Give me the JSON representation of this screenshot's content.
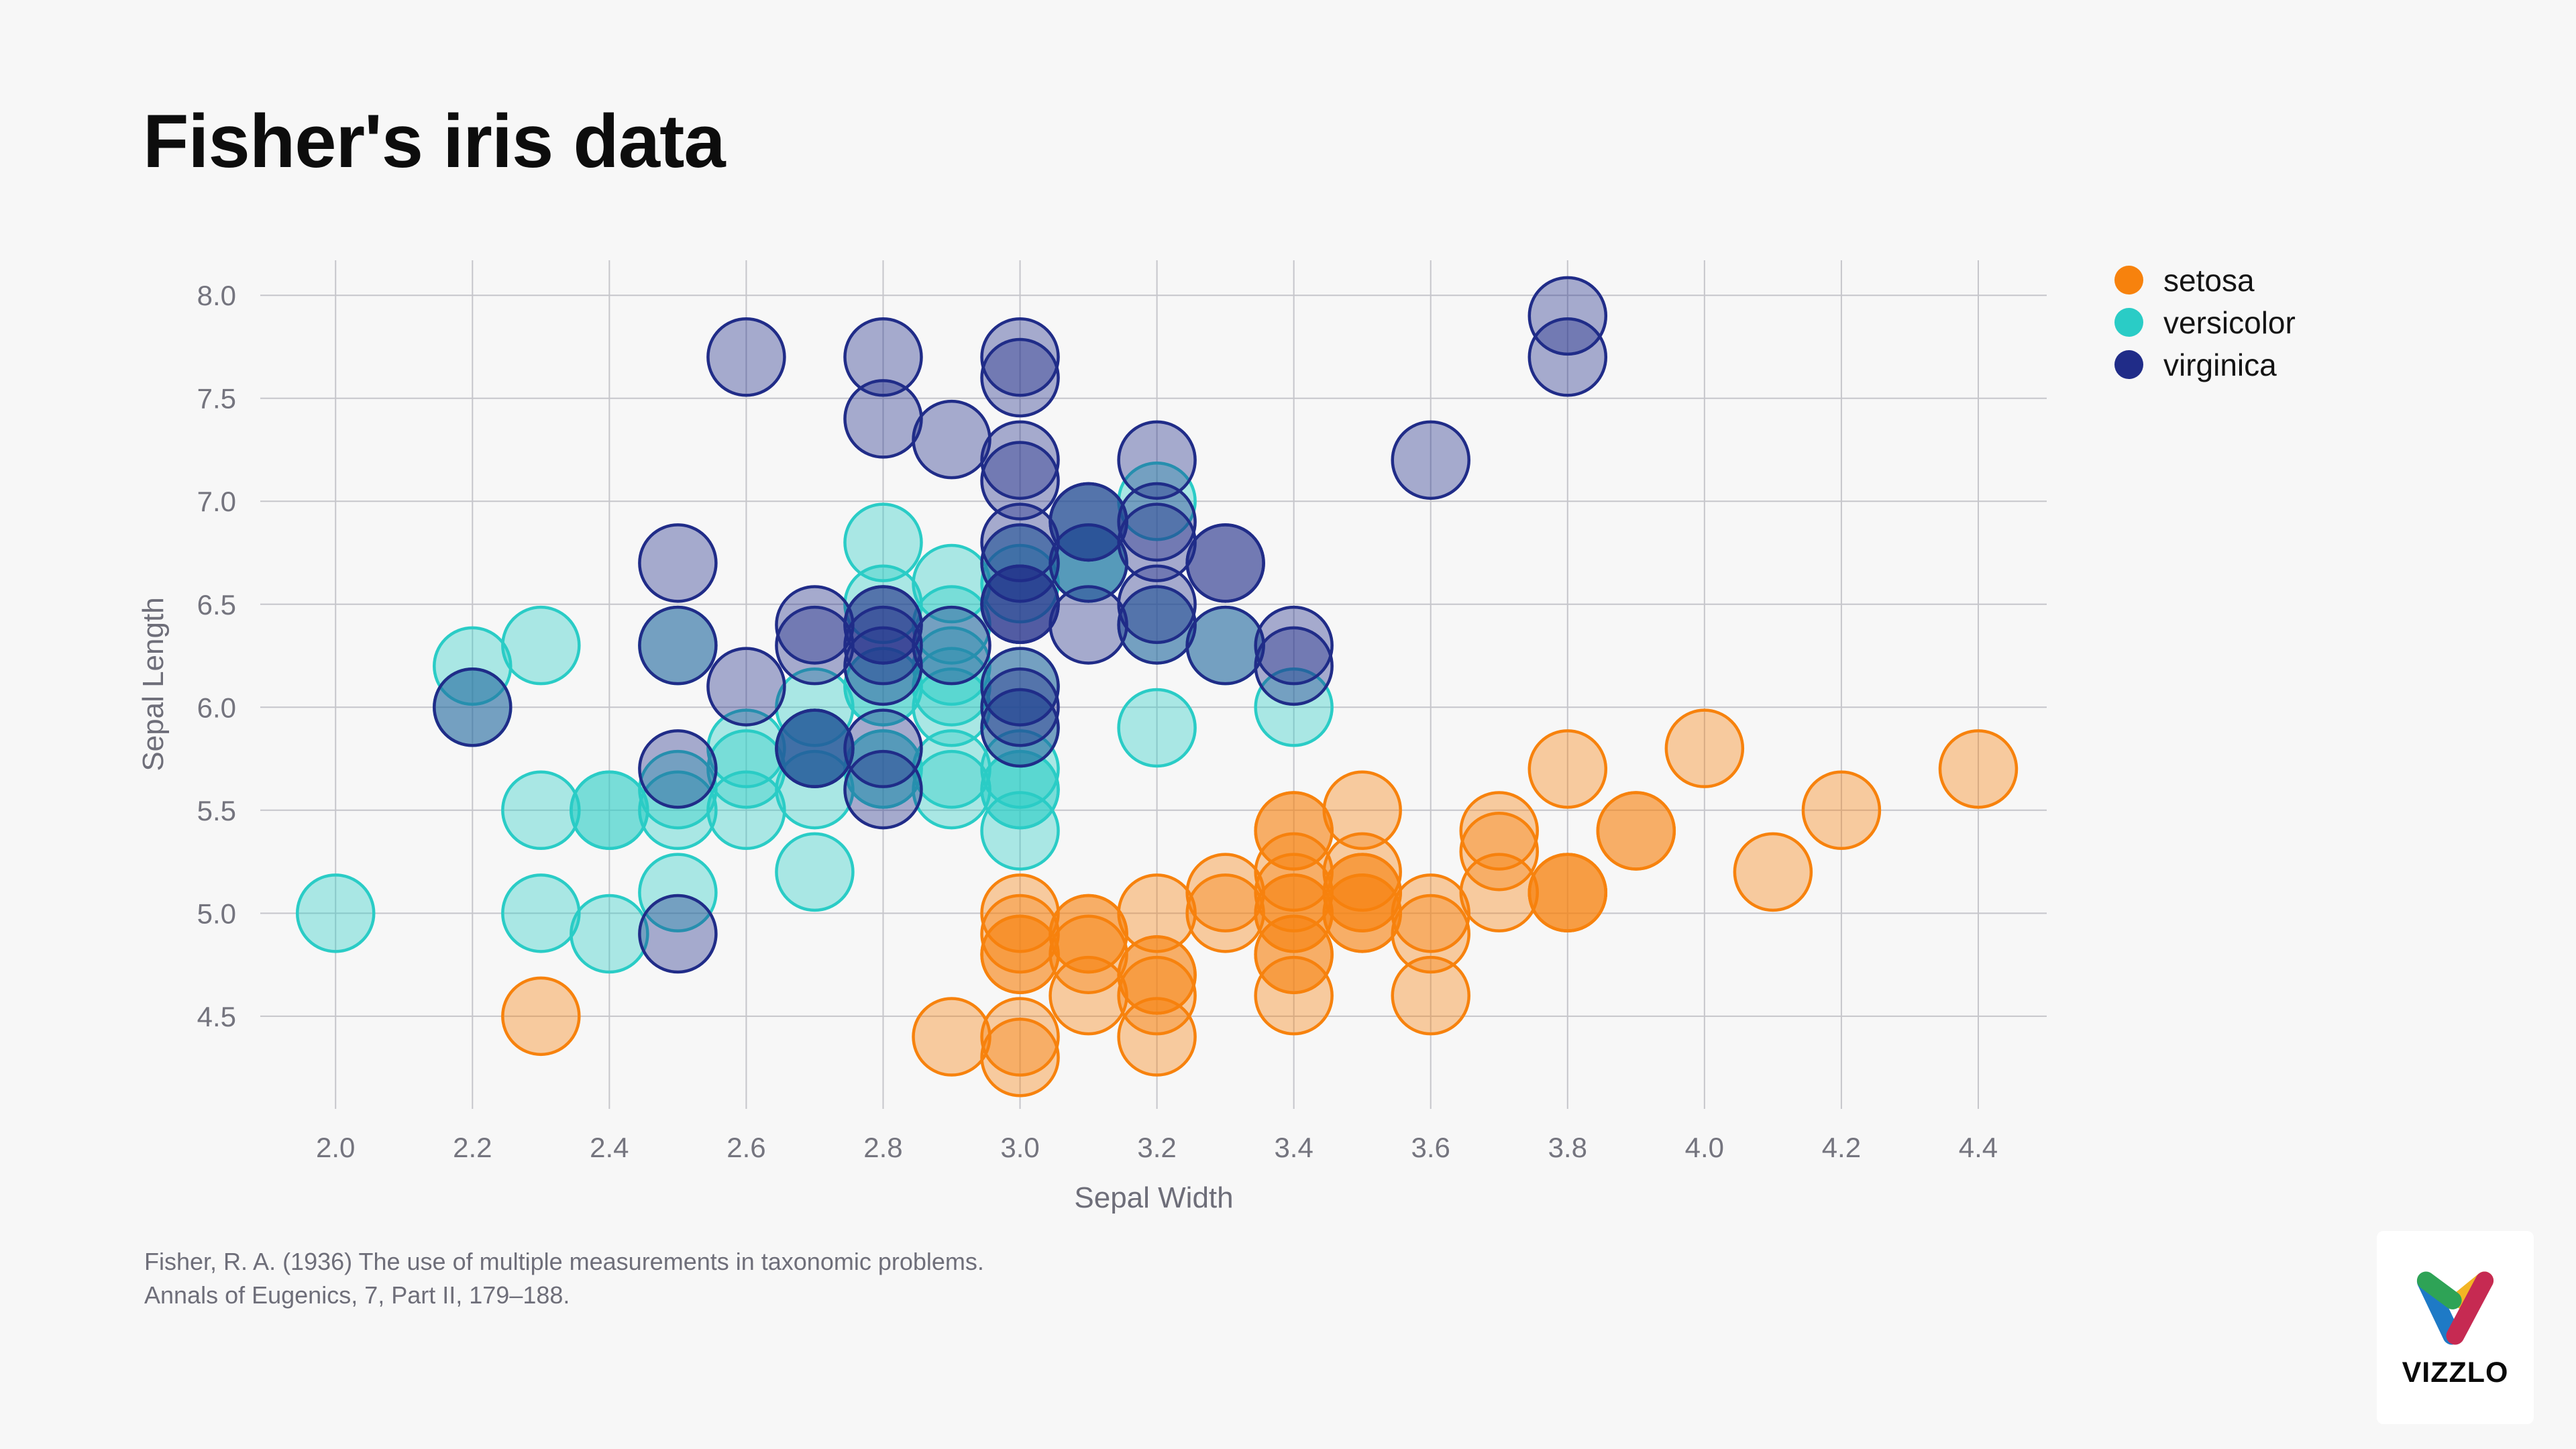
{
  "page": {
    "background": "#f7f7f7"
  },
  "citation": {
    "line1": "Fisher, R. A. (1936) The use of multiple measurements in taxonomic problems.",
    "line2": "Annals of Eugenics, 7, Part II, 179–188."
  },
  "logo": {
    "text": "VIZZLO",
    "icon_colors": {
      "green": "#2ea356",
      "blue": "#1e7ac6",
      "yellow": "#f2b524",
      "red": "#c62a52"
    }
  },
  "chart_data": {
    "type": "scatter",
    "title": "Fisher's iris data",
    "xlabel": "Sepal Width",
    "ylabel": "Sepal Length",
    "xticks": [
      2.0,
      2.2,
      2.4,
      2.6,
      2.8,
      3.0,
      3.2,
      3.4,
      3.6,
      3.8,
      4.0,
      4.2,
      4.4
    ],
    "yticks": [
      4.5,
      5.0,
      5.5,
      6.0,
      6.5,
      7.0,
      7.5,
      8.0
    ],
    "xlim": [
      1.89,
      4.5
    ],
    "ylim": [
      4.05,
      8.17
    ],
    "grid": true,
    "legend_position": "right",
    "tick_color": "#74747e",
    "grid_color": "#c6c6cb",
    "marker": {
      "radius_px": 57,
      "stroke_width": 4.5,
      "fill_opacity": 0.38
    },
    "series": [
      {
        "name": "setosa",
        "color": "#f7820d",
        "points": [
          [
            3.5,
            5.1
          ],
          [
            3.0,
            4.9
          ],
          [
            3.2,
            4.7
          ],
          [
            3.1,
            4.6
          ],
          [
            3.6,
            5.0
          ],
          [
            3.9,
            5.4
          ],
          [
            3.4,
            4.6
          ],
          [
            3.4,
            5.0
          ],
          [
            2.9,
            4.4
          ],
          [
            3.1,
            4.9
          ],
          [
            3.7,
            5.4
          ],
          [
            3.4,
            4.8
          ],
          [
            3.0,
            4.8
          ],
          [
            3.0,
            4.3
          ],
          [
            4.0,
            5.8
          ],
          [
            4.4,
            5.7
          ],
          [
            3.9,
            5.4
          ],
          [
            3.5,
            5.1
          ],
          [
            3.8,
            5.7
          ],
          [
            3.8,
            5.1
          ],
          [
            3.4,
            5.4
          ],
          [
            3.7,
            5.1
          ],
          [
            3.6,
            4.6
          ],
          [
            3.3,
            5.1
          ],
          [
            3.4,
            4.8
          ],
          [
            3.0,
            5.0
          ],
          [
            3.4,
            5.0
          ],
          [
            3.5,
            5.2
          ],
          [
            3.4,
            5.2
          ],
          [
            3.2,
            4.7
          ],
          [
            3.1,
            4.8
          ],
          [
            3.4,
            5.4
          ],
          [
            4.1,
            5.2
          ],
          [
            4.2,
            5.5
          ],
          [
            3.1,
            4.9
          ],
          [
            3.2,
            5.0
          ],
          [
            3.5,
            5.5
          ],
          [
            3.6,
            4.9
          ],
          [
            3.0,
            4.4
          ],
          [
            3.4,
            5.1
          ],
          [
            3.5,
            5.0
          ],
          [
            2.3,
            4.5
          ],
          [
            3.2,
            4.4
          ],
          [
            3.5,
            5.0
          ],
          [
            3.8,
            5.1
          ],
          [
            3.0,
            4.8
          ],
          [
            3.8,
            5.1
          ],
          [
            3.2,
            4.6
          ],
          [
            3.7,
            5.3
          ],
          [
            3.3,
            5.0
          ]
        ]
      },
      {
        "name": "versicolor",
        "color": "#2accc6",
        "points": [
          [
            3.2,
            7.0
          ],
          [
            3.2,
            6.4
          ],
          [
            3.1,
            6.9
          ],
          [
            2.3,
            5.5
          ],
          [
            2.8,
            6.5
          ],
          [
            2.8,
            5.7
          ],
          [
            3.3,
            6.3
          ],
          [
            2.4,
            4.9
          ],
          [
            2.9,
            6.6
          ],
          [
            2.7,
            5.2
          ],
          [
            2.0,
            5.0
          ],
          [
            3.0,
            5.9
          ],
          [
            2.2,
            6.0
          ],
          [
            2.9,
            6.1
          ],
          [
            2.9,
            5.6
          ],
          [
            3.1,
            6.7
          ],
          [
            3.0,
            5.6
          ],
          [
            2.7,
            5.8
          ],
          [
            2.2,
            6.2
          ],
          [
            2.5,
            5.6
          ],
          [
            3.2,
            5.9
          ],
          [
            2.8,
            6.1
          ],
          [
            2.5,
            6.3
          ],
          [
            2.8,
            6.1
          ],
          [
            2.9,
            6.4
          ],
          [
            3.0,
            6.6
          ],
          [
            2.8,
            6.8
          ],
          [
            3.0,
            6.7
          ],
          [
            2.9,
            6.0
          ],
          [
            2.6,
            5.7
          ],
          [
            2.4,
            5.5
          ],
          [
            2.4,
            5.5
          ],
          [
            2.7,
            5.8
          ],
          [
            2.7,
            6.0
          ],
          [
            3.0,
            5.4
          ],
          [
            3.4,
            6.0
          ],
          [
            3.1,
            6.7
          ],
          [
            2.3,
            6.3
          ],
          [
            3.0,
            5.6
          ],
          [
            2.5,
            5.5
          ],
          [
            2.6,
            5.5
          ],
          [
            3.0,
            6.1
          ],
          [
            2.6,
            5.8
          ],
          [
            2.3,
            5.0
          ],
          [
            2.7,
            5.6
          ],
          [
            3.0,
            5.7
          ],
          [
            2.9,
            5.7
          ],
          [
            2.9,
            6.2
          ],
          [
            2.5,
            5.1
          ],
          [
            2.8,
            5.7
          ]
        ]
      },
      {
        "name": "virginica",
        "color": "#202c88",
        "points": [
          [
            3.3,
            6.3
          ],
          [
            2.7,
            5.8
          ],
          [
            3.0,
            7.1
          ],
          [
            2.9,
            6.3
          ],
          [
            3.0,
            6.5
          ],
          [
            3.0,
            7.6
          ],
          [
            2.5,
            4.9
          ],
          [
            2.9,
            7.3
          ],
          [
            2.5,
            6.7
          ],
          [
            3.6,
            7.2
          ],
          [
            3.2,
            6.5
          ],
          [
            2.7,
            6.4
          ],
          [
            3.0,
            6.8
          ],
          [
            2.5,
            5.7
          ],
          [
            2.8,
            5.8
          ],
          [
            3.2,
            6.4
          ],
          [
            3.0,
            6.5
          ],
          [
            3.8,
            7.7
          ],
          [
            2.6,
            7.7
          ],
          [
            2.2,
            6.0
          ],
          [
            3.2,
            6.9
          ],
          [
            2.8,
            5.6
          ],
          [
            2.8,
            7.7
          ],
          [
            2.7,
            6.3
          ],
          [
            3.3,
            6.7
          ],
          [
            3.2,
            7.2
          ],
          [
            2.8,
            6.2
          ],
          [
            3.0,
            6.1
          ],
          [
            2.8,
            6.4
          ],
          [
            3.0,
            7.2
          ],
          [
            2.8,
            7.4
          ],
          [
            3.8,
            7.9
          ],
          [
            2.8,
            6.4
          ],
          [
            2.8,
            6.3
          ],
          [
            2.6,
            6.1
          ],
          [
            3.0,
            7.7
          ],
          [
            3.4,
            6.3
          ],
          [
            3.1,
            6.4
          ],
          [
            3.0,
            6.0
          ],
          [
            3.1,
            6.9
          ],
          [
            3.1,
            6.7
          ],
          [
            3.1,
            6.9
          ],
          [
            2.7,
            5.8
          ],
          [
            3.2,
            6.8
          ],
          [
            3.3,
            6.7
          ],
          [
            3.0,
            6.7
          ],
          [
            2.5,
            6.3
          ],
          [
            3.0,
            6.5
          ],
          [
            3.4,
            6.2
          ],
          [
            3.0,
            5.9
          ]
        ]
      }
    ]
  }
}
